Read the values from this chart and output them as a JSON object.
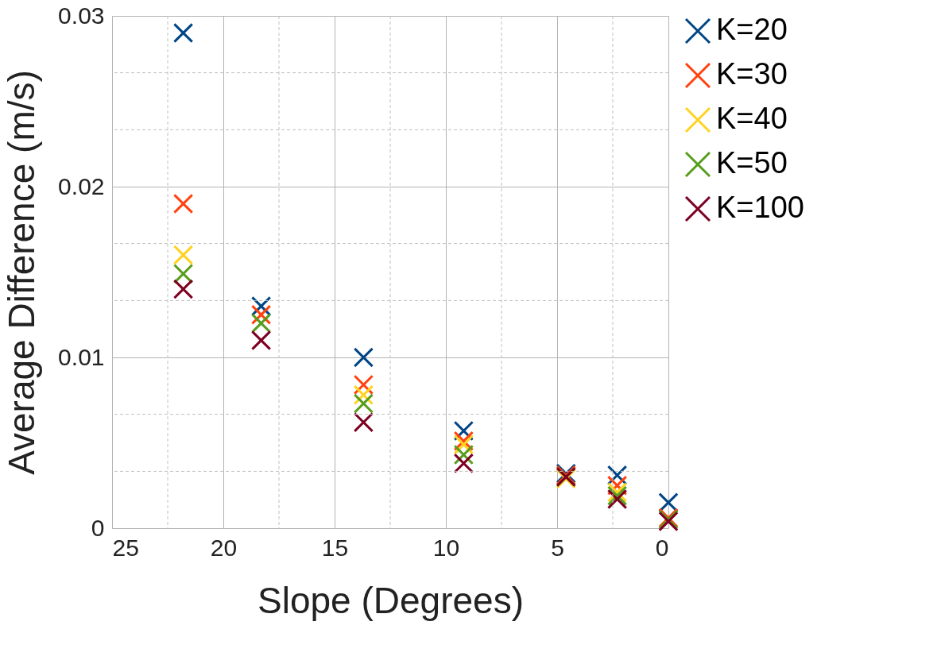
{
  "chart_data": {
    "type": "scatter",
    "xlabel": "Slope (Degrees)",
    "ylabel": "Average Difference (m/s)",
    "marker": "cross",
    "grid": true,
    "legend": "right",
    "x": [
      21.8,
      18.3,
      13.7,
      9.2,
      4.6,
      2.3,
      0
    ],
    "xlim": [
      25,
      0
    ],
    "xticks": [
      25,
      {
        "value": 22.5,
        "label": null
      },
      20,
      {
        "value": 17.5,
        "label": null
      },
      15,
      {
        "value": 12.5,
        "label": null
      },
      10,
      {
        "value": 7.5,
        "label": null
      },
      5,
      {
        "value": 2.5,
        "label": null
      },
      0
    ],
    "ylim": [
      0,
      0.03
    ],
    "yticks": [
      0,
      {
        "value": 0.00333,
        "label": null
      },
      {
        "value": 0.00667,
        "label": null
      },
      0.01,
      {
        "value": 0.01333,
        "label": null
      },
      {
        "value": 0.01667,
        "label": null
      },
      0.02,
      {
        "value": 0.02333,
        "label": null
      },
      {
        "value": 0.02667,
        "label": null
      },
      0.03
    ],
    "series": [
      {
        "name": "K=20",
        "color": "#004586",
        "values": [
          0.029,
          0.013,
          0.01,
          0.0057,
          0.0032,
          0.0031,
          0.0015
        ]
      },
      {
        "name": "K=30",
        "color": "#ff420e",
        "values": [
          0.019,
          0.0125,
          0.0084,
          0.0051,
          0.0031,
          0.0025,
          0.0006
        ]
      },
      {
        "name": "K=40",
        "color": "#ffd320",
        "values": [
          0.016,
          null,
          0.0078,
          0.0049,
          0.0029,
          0.0021,
          null
        ]
      },
      {
        "name": "K=50",
        "color": "#579d1c",
        "values": [
          0.0149,
          0.012,
          0.0073,
          0.0043,
          0.003,
          0.0019,
          0.0005
        ]
      },
      {
        "name": "K=100",
        "color": "#7e0021",
        "values": [
          0.014,
          0.011,
          0.0062,
          0.0038,
          0.003,
          0.0017,
          0.0004
        ]
      }
    ]
  }
}
